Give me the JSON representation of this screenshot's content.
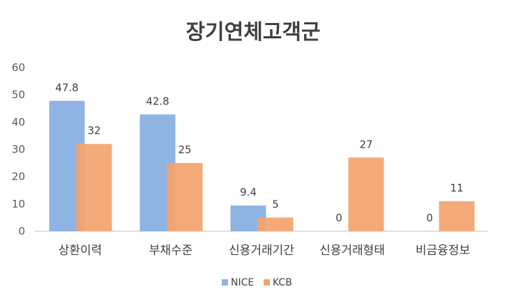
{
  "chart_data": {
    "type": "bar",
    "title": "장기연체고객군",
    "categories": [
      "상환이력",
      "부채수준",
      "신용거래기간",
      "신용거래형태",
      "비금융정보"
    ],
    "series": [
      {
        "name": "NICE",
        "values": [
          47.8,
          42.8,
          9.4,
          0,
          0
        ],
        "labels": [
          "47.8",
          "42.8",
          "9.4",
          "0",
          "0"
        ],
        "color": "#8FB4E3"
      },
      {
        "name": "KCB",
        "values": [
          32,
          25,
          5,
          27,
          11
        ],
        "labels": [
          "32",
          "25",
          "5",
          "27",
          "11"
        ],
        "color": "#F4A46E"
      }
    ],
    "ylim": [
      0,
      60
    ],
    "yticks": [
      "0",
      "10",
      "20",
      "30",
      "40",
      "50",
      "60"
    ],
    "grid": false,
    "legend": "bottom-center",
    "xlabel": "",
    "ylabel": ""
  }
}
